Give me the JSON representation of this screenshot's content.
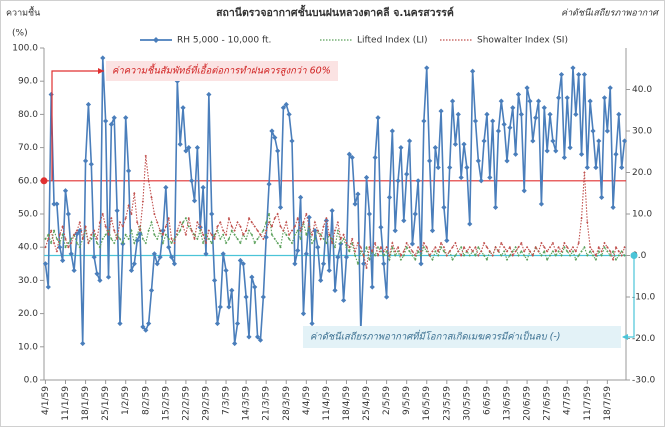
{
  "chart_data": {
    "type": "line",
    "title": "สถานีตรวจอากาศชั้นบนฝนหลวงตาคลี  จ.นครสวรรค์",
    "y_label": "ความชื้น",
    "y_unit": "(%)",
    "y2_label": "ค่าดัชนีเสถียรภาพอากาศ",
    "categories": [
      "4/1/59",
      null,
      null,
      null,
      null,
      null,
      null,
      "11/1/59",
      null,
      null,
      null,
      null,
      null,
      null,
      "18/1/59",
      null,
      null,
      null,
      null,
      null,
      null,
      "25/1/59",
      null,
      null,
      null,
      null,
      null,
      null,
      "1/2/59",
      null,
      null,
      null,
      null,
      null,
      null,
      "8/2/59",
      null,
      null,
      null,
      null,
      null,
      null,
      "15/2/59",
      null,
      null,
      null,
      null,
      null,
      null,
      "22/2/59",
      null,
      null,
      null,
      null,
      null,
      null,
      "29/2/59",
      null,
      null,
      null,
      null,
      null,
      null,
      "7/3/59",
      null,
      null,
      null,
      null,
      null,
      null,
      "14/3/59",
      null,
      null,
      null,
      null,
      null,
      null,
      "21/3/59",
      null,
      null,
      null,
      null,
      null,
      null,
      "28/3/59",
      null,
      null,
      null,
      null,
      null,
      null,
      "4/4/59",
      null,
      null,
      null,
      null,
      null,
      null,
      "11/4/59",
      null,
      null,
      null,
      null,
      null,
      null,
      "18/4/59",
      null,
      null,
      null,
      null,
      null,
      null,
      "25/4/59",
      null,
      null,
      null,
      null,
      null,
      null,
      "2/5/59",
      null,
      null,
      null,
      null,
      null,
      null,
      "9/5/59",
      null,
      null,
      null,
      null,
      null,
      null,
      "16/5/59",
      null,
      null,
      null,
      null,
      null,
      null,
      "23/5/59",
      null,
      null,
      null,
      null,
      null,
      null,
      "30/5/59",
      null,
      null,
      null,
      null,
      null,
      null,
      "6/6/59",
      null,
      null,
      null,
      null,
      null,
      null,
      "13/6/59",
      null,
      null,
      null,
      null,
      null,
      null,
      "20/6/59",
      null,
      null,
      null,
      null,
      null,
      null,
      "27/6/59",
      null,
      null,
      null,
      null,
      null,
      null,
      "4/7/59",
      null,
      null,
      null,
      null,
      null,
      null,
      "11/7/59",
      null,
      null,
      null,
      null,
      null,
      null,
      "18/7/59",
      null,
      null,
      null,
      null,
      null,
      null
    ],
    "series": [
      {
        "name": "RH 5,000 - 10,000 ft.",
        "color": "#4a7ebb",
        "axis": "y",
        "values": [
          35,
          28,
          86,
          53,
          53,
          40,
          36,
          57,
          50,
          38,
          33,
          44,
          45,
          11,
          66,
          83,
          65,
          37,
          32,
          30,
          97,
          78,
          31,
          77,
          79,
          51,
          17,
          41,
          79,
          63,
          33,
          35,
          42,
          44,
          16,
          15,
          17,
          27,
          38,
          35,
          37,
          45,
          58,
          40,
          37,
          35,
          90,
          71,
          82,
          69,
          70,
          60,
          54,
          70,
          46,
          58,
          38,
          86,
          50,
          30,
          17,
          22,
          38,
          33,
          22,
          27,
          11,
          17,
          36,
          35,
          25,
          13,
          31,
          28,
          13,
          12,
          25,
          43,
          59,
          75,
          73,
          69,
          52,
          82,
          83,
          80,
          72,
          35,
          39,
          55,
          20,
          38,
          49,
          17,
          45,
          40,
          30,
          35,
          48,
          33,
          51,
          27,
          37,
          41,
          24,
          37,
          68,
          67,
          53,
          56,
          15,
          35,
          61,
          50,
          28,
          67,
          79,
          46,
          35,
          25,
          55,
          75,
          45,
          60,
          70,
          48,
          62,
          72,
          41,
          50,
          60,
          35,
          78,
          94,
          66,
          45,
          70,
          64,
          81,
          52,
          42,
          64,
          84,
          71,
          80,
          61,
          71,
          64,
          47,
          93,
          78,
          66,
          60,
          72,
          80,
          61,
          78,
          52,
          75,
          84,
          77,
          66,
          76,
          82,
          68,
          86,
          80,
          57,
          88,
          84,
          72,
          79,
          84,
          53,
          82,
          69,
          80,
          72,
          69,
          85,
          92,
          67,
          85,
          70,
          94,
          80,
          92,
          68,
          92,
          64,
          84,
          75,
          64,
          72,
          55,
          85,
          75,
          88,
          52,
          68,
          80,
          64,
          72
        ]
      },
      {
        "name": "Lifted Index (LI)",
        "color": "#5aa05a",
        "axis": "y2",
        "values": [
          4,
          5,
          3,
          6,
          4,
          3,
          5,
          2,
          3,
          4,
          5,
          3,
          2,
          4,
          6,
          3,
          4,
          5,
          3,
          2,
          4,
          5,
          6,
          4,
          3,
          5,
          4,
          3,
          5,
          4,
          6,
          3,
          5,
          7,
          4,
          3,
          6,
          8,
          5,
          4,
          6,
          3,
          5,
          4,
          3,
          4,
          5,
          6,
          8,
          9,
          7,
          6,
          5,
          4,
          6,
          3,
          5,
          4,
          3,
          5,
          6,
          4,
          5,
          3,
          4,
          6,
          5,
          4,
          3,
          5,
          4,
          6,
          5,
          3,
          4,
          5,
          6,
          8,
          10,
          5,
          4,
          3,
          2,
          6,
          5,
          4,
          3,
          5,
          6,
          4,
          8,
          5,
          7,
          3,
          4,
          6,
          5,
          4,
          3,
          5,
          4,
          2,
          6,
          3,
          4,
          2,
          1,
          3,
          0,
          -2,
          1,
          0,
          2,
          -1,
          1,
          0,
          2,
          1,
          0,
          1,
          -1,
          2,
          0,
          1,
          -1,
          0,
          2,
          1,
          0,
          -1,
          1,
          0,
          2,
          1,
          0,
          -1,
          1,
          0,
          2,
          1,
          0,
          1,
          -1,
          0,
          1,
          2,
          0,
          1,
          0,
          1,
          0,
          2,
          1,
          0,
          -1,
          1,
          0,
          2,
          1,
          0,
          1,
          -1,
          0,
          1,
          2,
          0,
          1,
          0,
          -1,
          1,
          0,
          2,
          1,
          0,
          1,
          -1,
          0,
          1,
          0,
          1,
          0,
          2,
          1,
          0,
          1,
          -1,
          0,
          1,
          2,
          0,
          1,
          0,
          -1,
          1,
          0,
          2,
          1,
          0,
          1,
          -1,
          0,
          1,
          0
        ]
      },
      {
        "name": "Showalter Index (SI)",
        "color": "#c0504d",
        "axis": "y2",
        "values": [
          2,
          4,
          6,
          3,
          1,
          5,
          7,
          4,
          2,
          3,
          5,
          6,
          8,
          4,
          7,
          3,
          5,
          6,
          4,
          8,
          10,
          7,
          5,
          9,
          6,
          4,
          8,
          7,
          9,
          12,
          10,
          15,
          8,
          6,
          13,
          24,
          18,
          14,
          10,
          8,
          6,
          5,
          7,
          9,
          4,
          3,
          6,
          8,
          7,
          5,
          9,
          6,
          4,
          8,
          7,
          5,
          3,
          6,
          5,
          4,
          7,
          8,
          6,
          5,
          9,
          7,
          6,
          8,
          7,
          5,
          6,
          9,
          8,
          7,
          6,
          5,
          4,
          6,
          8,
          7,
          9,
          10,
          7,
          6,
          8,
          5,
          6,
          7,
          9,
          6,
          8,
          10,
          7,
          5,
          8,
          6,
          4,
          7,
          9,
          5,
          3,
          6,
          8,
          4,
          5,
          3,
          2,
          4,
          1,
          3,
          2,
          0,
          -3,
          2,
          1,
          3,
          0,
          2,
          1,
          2,
          0,
          3,
          1,
          2,
          0,
          1,
          3,
          2,
          1,
          0,
          2,
          1,
          3,
          2,
          0,
          1,
          2,
          1,
          3,
          2,
          0,
          1,
          2,
          3,
          1,
          0,
          2,
          1,
          2,
          1,
          2,
          0,
          1,
          3,
          2,
          1,
          0,
          2,
          1,
          3,
          2,
          1,
          2,
          0,
          1,
          2,
          3,
          1,
          2,
          1,
          0,
          2,
          1,
          3,
          2,
          1,
          2,
          3,
          1,
          2,
          1,
          3,
          2,
          1,
          2,
          1,
          3,
          9,
          20,
          8,
          2,
          1,
          0,
          2,
          1,
          3,
          2,
          1,
          -1,
          2,
          1,
          0,
          2
        ]
      }
    ],
    "ylim": [
      0,
      100
    ],
    "yticks": [
      {
        "value": 0,
        "label": "0.0"
      },
      {
        "value": 10,
        "label": "10.0"
      },
      {
        "value": 20,
        "label": "20.0"
      },
      {
        "value": 30,
        "label": "30.0"
      },
      {
        "value": 40,
        "label": "40.0"
      },
      {
        "value": 50,
        "label": "50.0"
      },
      {
        "value": 60,
        "label": "60.0"
      },
      {
        "value": 70,
        "label": "70.0"
      },
      {
        "value": 80,
        "label": "80.0"
      },
      {
        "value": 90,
        "label": "90.0"
      },
      {
        "value": 100,
        "label": "100.0"
      }
    ],
    "y2lim": [
      -30,
      50
    ],
    "y2ticks": [
      {
        "value": -30,
        "label": "-30.0"
      },
      {
        "value": -20,
        "label": "-20.0"
      },
      {
        "value": -10,
        "label": "-10.0"
      },
      {
        "value": 0,
        "label": "0.0"
      },
      {
        "value": 10,
        "label": "10.0"
      },
      {
        "value": 20,
        "label": "20.0"
      },
      {
        "value": 30,
        "label": "30.0"
      },
      {
        "value": 40,
        "label": "40.0"
      }
    ],
    "reference_lines": [
      {
        "value": 60,
        "axis": "y",
        "color": "#e03030"
      },
      {
        "value": 0,
        "axis": "y2",
        "color": "#4bc4d8"
      }
    ],
    "annotations": [
      "ค่าความชื้นสัมพัทธ์ที่เอื้อต่อการทำฝนควรสูงกว่า 60%",
      "ค่าดัชนีเสถียรภาพอากาศที่มีโอกาสเกิดเมฆควรมีค่าเป็นลบ (-)"
    ],
    "legend": "top"
  }
}
